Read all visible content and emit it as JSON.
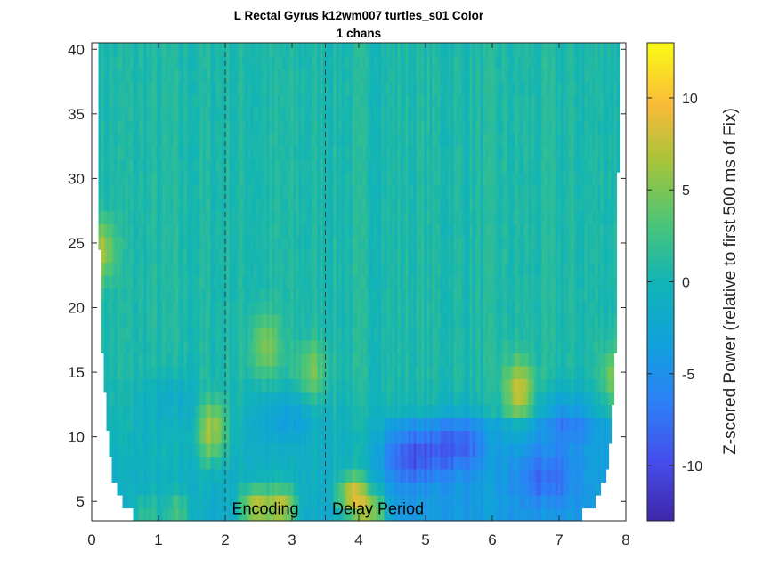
{
  "chart_data": {
    "type": "heatmap",
    "title": "L Rectal Gyrus k12wm007 turtles_s01 Color",
    "subtitle": "1 chans",
    "xlabel": "",
    "ylabel": "",
    "xlim": [
      0,
      8
    ],
    "ylim": [
      3.5,
      40.5
    ],
    "x_ticks": [
      0,
      1,
      2,
      3,
      4,
      5,
      6,
      7,
      8
    ],
    "y_ticks": [
      5,
      10,
      15,
      20,
      25,
      30,
      35,
      40
    ],
    "colorbar": {
      "label": "Z-scored Power (relative to first 500 ms of Fix)",
      "range": [
        -13,
        13
      ],
      "ticks": [
        -10,
        -5,
        0,
        5,
        10
      ],
      "colormap": "parula"
    },
    "event_lines": [
      {
        "x": 2.0,
        "style": "dashed"
      },
      {
        "x": 3.5,
        "style": "dashed"
      }
    ],
    "annotations": [
      {
        "text": "Encoding",
        "x": 2.1,
        "y": 4.5
      },
      {
        "text": "Delay Period",
        "x": 3.6,
        "y": 4.5
      }
    ],
    "time_range": [
      0.1,
      7.9
    ],
    "freq_range": [
      3.5,
      40.5
    ],
    "cone_of_influence": [
      {
        "freq": 4,
        "t_start": 0.62,
        "t_end": 7.35
      },
      {
        "freq": 5,
        "t_start": 0.45,
        "t_end": 7.55
      },
      {
        "freq": 6,
        "t_start": 0.37,
        "t_end": 7.63
      },
      {
        "freq": 7,
        "t_start": 0.32,
        "t_end": 7.7
      },
      {
        "freq": 8,
        "t_start": 0.3,
        "t_end": 7.73
      },
      {
        "freq": 9,
        "t_start": 0.27,
        "t_end": 7.76
      },
      {
        "freq": 10,
        "t_start": 0.25,
        "t_end": 7.78
      },
      {
        "freq": 12,
        "t_start": 0.22,
        "t_end": 7.8
      },
      {
        "freq": 15,
        "t_start": 0.18,
        "t_end": 7.83
      },
      {
        "freq": 18,
        "t_start": 0.15,
        "t_end": 7.85
      },
      {
        "freq": 25,
        "t_start": 0.12,
        "t_end": 7.87
      },
      {
        "freq": 41,
        "t_start": 0.1,
        "t_end": 7.9
      }
    ],
    "hotspots": [
      {
        "t": 2.45,
        "f": 4.6,
        "z": 9.0
      },
      {
        "t": 2.85,
        "f": 4.6,
        "z": 8.5
      },
      {
        "t": 3.9,
        "f": 5.5,
        "z": 9.5
      },
      {
        "t": 4.2,
        "f": 4.2,
        "z": 7.5
      },
      {
        "t": 1.3,
        "f": 4.2,
        "z": 4.0
      },
      {
        "t": 0.8,
        "f": 4.0,
        "z": 3.5
      },
      {
        "t": 6.4,
        "f": 13.5,
        "z": 7.5
      },
      {
        "t": 1.8,
        "f": 10.5,
        "z": 7.0
      },
      {
        "t": 0.12,
        "f": 24.5,
        "z": 6.0
      },
      {
        "t": 2.6,
        "f": 17.0,
        "z": 4.5
      },
      {
        "t": 3.3,
        "f": 15.0,
        "z": 4.0
      },
      {
        "t": 7.85,
        "f": 14.5,
        "z": 5.0
      }
    ],
    "coldspots": [
      {
        "t": 4.8,
        "f": 8.5,
        "z": -6.0
      },
      {
        "t": 5.5,
        "f": 9.5,
        "z": -5.5
      },
      {
        "t": 6.8,
        "f": 7.0,
        "z": -5.0
      },
      {
        "t": 2.9,
        "f": 11.5,
        "z": -3.5
      },
      {
        "t": 7.1,
        "f": 11.5,
        "z": -4.5
      },
      {
        "t": 1.2,
        "f": 13.0,
        "z": -2.0
      }
    ]
  }
}
